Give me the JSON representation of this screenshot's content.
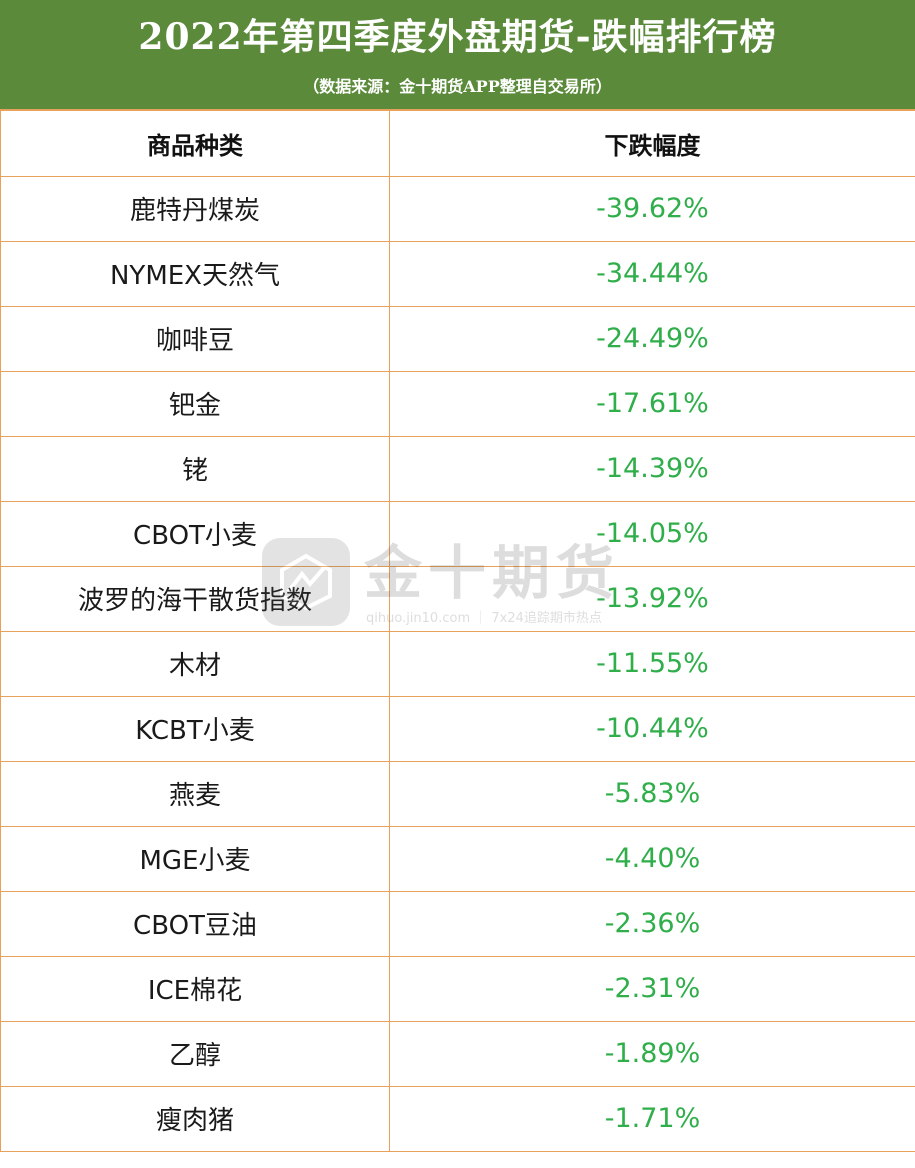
{
  "header": {
    "title": "2022年第四季度外盘期货-跌幅排行榜",
    "subtitle": "（数据来源：金十期货APP整理自交易所）"
  },
  "chart_data": {
    "type": "table",
    "columns": [
      "商品种类",
      "下跌幅度"
    ],
    "rows": [
      {
        "name": "鹿特丹煤炭",
        "value": "-39.62%"
      },
      {
        "name": "NYMEX天然气",
        "value": "-34.44%"
      },
      {
        "name": "咖啡豆",
        "value": "-24.49%"
      },
      {
        "name": "钯金",
        "value": "-17.61%"
      },
      {
        "name": "铑",
        "value": "-14.39%"
      },
      {
        "name": "CBOT小麦",
        "value": "-14.05%"
      },
      {
        "name": "波罗的海干散货指数",
        "value": "-13.92%"
      },
      {
        "name": "木材",
        "value": "-11.55%"
      },
      {
        "name": "KCBT小麦",
        "value": "-10.44%"
      },
      {
        "name": "燕麦",
        "value": "-5.83%"
      },
      {
        "name": "MGE小麦",
        "value": "-4.40%"
      },
      {
        "name": "CBOT豆油",
        "value": "-2.36%"
      },
      {
        "name": "ICE棉花",
        "value": "-2.31%"
      },
      {
        "name": "乙醇",
        "value": "-1.89%"
      },
      {
        "name": "瘦肉猪",
        "value": "-1.71%"
      }
    ]
  },
  "watermark": {
    "brand": "金十期货",
    "url": "qihuo.jin10.com ｜ 7x24追踪期市热点",
    "logo_icon": "jin10-logo-icon"
  },
  "colors": {
    "header_bg": "#5a8a3a",
    "border": "#e8a15a",
    "value_text": "#2fae4a"
  }
}
